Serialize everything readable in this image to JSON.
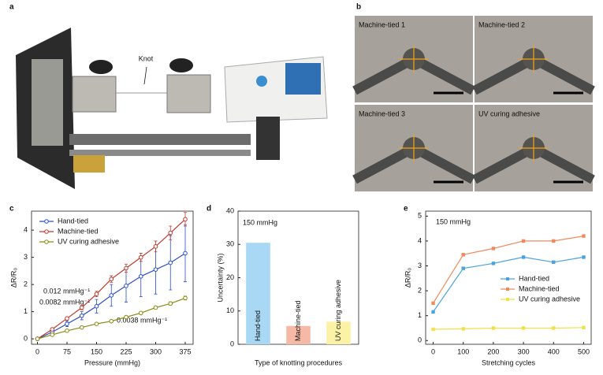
{
  "panel_labels": [
    "a",
    "b",
    "c",
    "d",
    "e"
  ],
  "photo_a": {
    "annotation": "Knot"
  },
  "photo_b": {
    "labels": [
      "Machine-tied 1",
      "Machine-tied 2",
      "Machine-tied 3",
      "UV curing adhesive"
    ]
  },
  "chart_data": [
    {
      "type": "line",
      "x_label": "Pressure (mmHg)",
      "y_label": "ΔR/R₀",
      "x": [
        0,
        37.5,
        75,
        112.5,
        150,
        187.5,
        225,
        262.5,
        300,
        337.5,
        375
      ],
      "xlim": [
        -15,
        395
      ],
      "xticks": [
        0,
        75,
        150,
        225,
        300,
        375
      ],
      "ylim": [
        -0.2,
        4.7
      ],
      "yticks": [
        0,
        1,
        2,
        3,
        4
      ],
      "annotations": [
        "0.012 mmHg⁻¹",
        "0.0082 mmHg⁻¹",
        "0.0038 mmHg⁻¹"
      ],
      "series": [
        {
          "name": "Hand-tied",
          "color": "#2a4fc9",
          "values": [
            0,
            0.25,
            0.55,
            0.85,
            1.2,
            1.6,
            1.95,
            2.3,
            2.55,
            2.8,
            3.15
          ],
          "errors": [
            0,
            0.05,
            0.1,
            0.15,
            0.25,
            0.4,
            0.6,
            0.75,
            0.9,
            1.0,
            1.05
          ]
        },
        {
          "name": "Machine-tied",
          "color": "#c0392b",
          "values": [
            0,
            0.35,
            0.75,
            1.15,
            1.65,
            2.2,
            2.6,
            3.0,
            3.4,
            3.9,
            4.4
          ],
          "errors": [
            0,
            0.05,
            0.05,
            0.08,
            0.1,
            0.12,
            0.15,
            0.15,
            0.2,
            0.25,
            0.25
          ]
        },
        {
          "name": "UV curing adhesive",
          "color": "#8a8a12",
          "values": [
            0,
            0.15,
            0.3,
            0.42,
            0.55,
            0.65,
            0.8,
            0.95,
            1.15,
            1.3,
            1.5
          ],
          "errors": [
            0,
            0.03,
            0.03,
            0.04,
            0.04,
            0.05,
            0.05,
            0.05,
            0.06,
            0.06,
            0.07
          ]
        }
      ]
    },
    {
      "type": "bar",
      "x_label": "Type of knotting procedures",
      "y_label": "Uncertainty (%)",
      "annotations": [
        "150 mmHg"
      ],
      "categories": [
        "Hand-tied",
        "Machine-tied",
        "UV curing adhesive"
      ],
      "values": [
        30.5,
        5.5,
        6.8
      ],
      "colors": [
        "#a9d8f5",
        "#f5b9a6",
        "#fbf2a6"
      ],
      "ylim": [
        0,
        40
      ],
      "yticks": [
        0,
        10,
        20,
        30,
        40
      ]
    },
    {
      "type": "line",
      "x_label": "Stretching cycles",
      "y_label": "ΔR/R₀",
      "annotations": [
        "150 mmHg"
      ],
      "x": [
        0,
        100,
        200,
        300,
        400,
        500
      ],
      "xlim": [
        -25,
        525
      ],
      "xticks": [
        0,
        100,
        200,
        300,
        400,
        500
      ],
      "ylim": [
        -0.15,
        5.2
      ],
      "yticks": [
        0,
        1,
        2,
        3,
        4,
        5
      ],
      "series": [
        {
          "name": "Hand-tied",
          "color": "#4aa3df",
          "values": [
            1.15,
            2.9,
            3.1,
            3.35,
            3.15,
            3.35
          ]
        },
        {
          "name": "Machine-tied",
          "color": "#f08a5d",
          "values": [
            1.5,
            3.45,
            3.7,
            4.0,
            4.0,
            4.2
          ]
        },
        {
          "name": "UV curing adhesive",
          "color": "#f1e04a",
          "values": [
            0.45,
            0.47,
            0.5,
            0.5,
            0.5,
            0.52
          ]
        }
      ]
    }
  ]
}
